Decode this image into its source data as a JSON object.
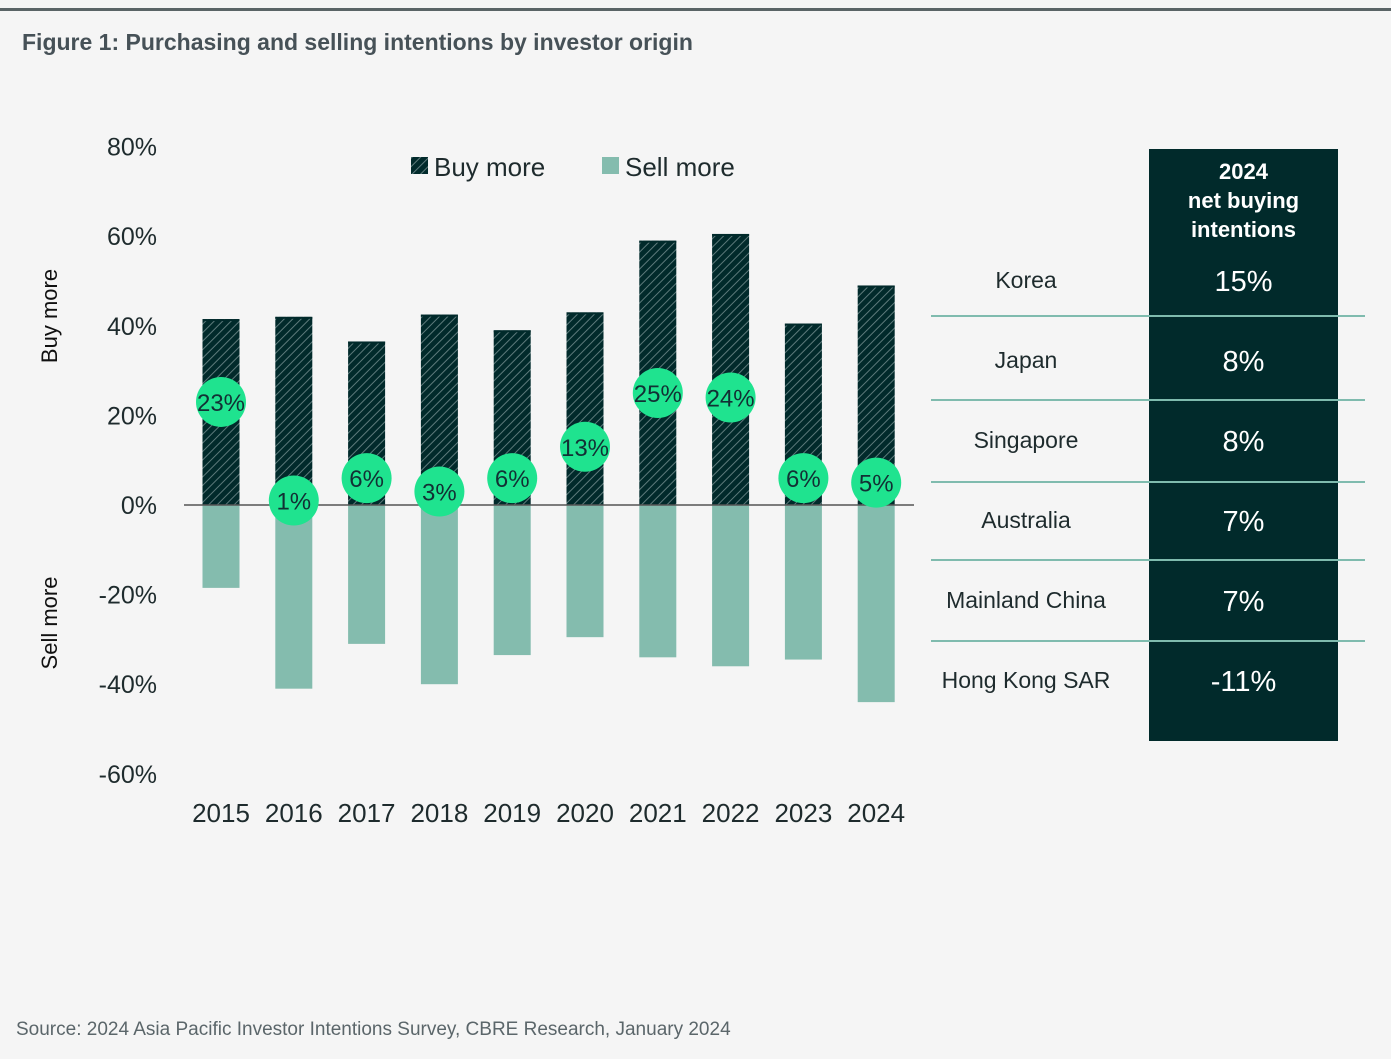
{
  "figure": {
    "title": "Figure 1:  Purchasing and selling intentions by investor origin",
    "source": "Source: 2024 Asia Pacific Investor Intentions Survey, CBRE Research, January 2024"
  },
  "colors": {
    "buy": "#012a2b",
    "sell": "#84bcae",
    "bubble": "#1fe38f",
    "table_bg": "#012a2b"
  },
  "chart_data": {
    "type": "bar",
    "title": "Purchasing and selling intentions by investor origin",
    "categories": [
      "2015",
      "2016",
      "2017",
      "2018",
      "2019",
      "2020",
      "2021",
      "2022",
      "2023",
      "2024"
    ],
    "series": [
      {
        "name": "Buy more",
        "values": [
          41.5,
          42,
          36.5,
          42.5,
          39,
          43,
          59,
          60.5,
          40.5,
          49
        ]
      },
      {
        "name": "Sell more",
        "values": [
          -18.5,
          -41,
          -31,
          -40,
          -33.5,
          -29.5,
          -34,
          -36,
          -34.5,
          -44
        ]
      }
    ],
    "net_labels": [
      "23%",
      "1%",
      "6%",
      "3%",
      "6%",
      "13%",
      "25%",
      "24%",
      "6%",
      "5%"
    ],
    "net_values": [
      23,
      1,
      6,
      3,
      6,
      13,
      25,
      24,
      6,
      5
    ],
    "ylim": [
      -60,
      80
    ],
    "yticks": [
      80,
      60,
      40,
      20,
      0,
      -20,
      -40,
      -60
    ],
    "ytick_labels": [
      "80%",
      "60%",
      "40%",
      "20%",
      "0%",
      "-20%",
      "-40%",
      "-60%"
    ],
    "ylabel_top": "Buy more",
    "ylabel_bottom": "Sell more",
    "legend": [
      "Buy more",
      "Sell more"
    ],
    "legend_position": "top-center"
  },
  "table": {
    "header": [
      "2024",
      "net buying",
      "intentions"
    ],
    "rows": [
      {
        "label": "Korea",
        "value": "15%"
      },
      {
        "label": "Japan",
        "value": "8%"
      },
      {
        "label": "Singapore",
        "value": "8%"
      },
      {
        "label": "Australia",
        "value": "7%"
      },
      {
        "label": "Mainland China",
        "value": "7%"
      },
      {
        "label": "Hong Kong SAR",
        "value": "-11%"
      }
    ]
  }
}
